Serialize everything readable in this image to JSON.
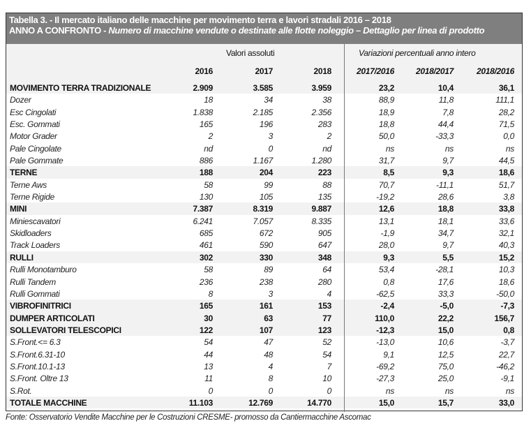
{
  "title": {
    "line1": "Tabella 3. - Il mercato italiano delle macchine per movimento terra e lavori stradali 2016 – 2018",
    "line2_prefix": "ANNO A CONFRONTO - ",
    "line2_italic": "Numero di macchine vendute o destinate alle flotte noleggio – Dettaglio per linea di prodotto"
  },
  "header": {
    "group_absolute": "Valori assoluti",
    "group_percent": "Variazioni percentuali anno intero",
    "columns": [
      "2016",
      "2017",
      "2018",
      "2017/2016",
      "2018/2017",
      "2018/2016"
    ]
  },
  "rows": [
    {
      "label": "MOVIMENTO TERRA TRADIZIONALE",
      "type": "bold",
      "values": [
        "2.909",
        "3.585",
        "3.959",
        "23,2",
        "10,4",
        "36,1"
      ]
    },
    {
      "label": "Dozer",
      "type": "sub",
      "values": [
        "18",
        "34",
        "38",
        "88,9",
        "11,8",
        "111,1"
      ]
    },
    {
      "label": "Esc Cingolati",
      "type": "sub",
      "values": [
        "1.838",
        "2.185",
        "2.356",
        "18,9",
        "7,8",
        "28,2"
      ]
    },
    {
      "label": "Esc. Gommati",
      "type": "sub",
      "values": [
        "165",
        "196",
        "283",
        "18,8",
        "44,4",
        "71,5"
      ]
    },
    {
      "label": "Motor Grader",
      "type": "sub",
      "values": [
        "2",
        "3",
        "2",
        "50,0",
        "-33,3",
        "0,0"
      ]
    },
    {
      "label": "Pale Cingolate",
      "type": "sub",
      "values": [
        "nd",
        "0",
        "nd",
        "ns",
        "ns",
        "ns"
      ]
    },
    {
      "label": "Pale Gommate",
      "type": "sub",
      "values": [
        "886",
        "1.167",
        "1.280",
        "31,7",
        "9,7",
        "44,5"
      ]
    },
    {
      "label": "TERNE",
      "type": "bold",
      "values": [
        "188",
        "204",
        "223",
        "8,5",
        "9,3",
        "18,6"
      ]
    },
    {
      "label": "Terne Aws",
      "type": "sub",
      "values": [
        "58",
        "99",
        "88",
        "70,7",
        "-11,1",
        "51,7"
      ]
    },
    {
      "label": "Terne Rigide",
      "type": "sub",
      "values": [
        "130",
        "105",
        "135",
        "-19,2",
        "28,6",
        "3,8"
      ]
    },
    {
      "label": "MINI",
      "type": "bold",
      "values": [
        "7.387",
        "8.319",
        "9.887",
        "12,6",
        "18,8",
        "33,8"
      ]
    },
    {
      "label": "Miniescavatori",
      "type": "sub",
      "values": [
        "6.241",
        "7.057",
        "8.335",
        "13,1",
        "18,1",
        "33,6"
      ]
    },
    {
      "label": "Skidloaders",
      "type": "sub",
      "values": [
        "685",
        "672",
        "905",
        "-1,9",
        "34,7",
        "32,1"
      ]
    },
    {
      "label": "Track Loaders",
      "type": "sub",
      "values": [
        "461",
        "590",
        "647",
        "28,0",
        "9,7",
        "40,3"
      ]
    },
    {
      "label": "RULLI",
      "type": "bold",
      "values": [
        "302",
        "330",
        "348",
        "9,3",
        "5,5",
        "15,2"
      ]
    },
    {
      "label": "Rulli Monotamburo",
      "type": "sub",
      "values": [
        "58",
        "89",
        "64",
        "53,4",
        "-28,1",
        "10,3"
      ]
    },
    {
      "label": "Rulli Tandem",
      "type": "sub",
      "values": [
        "236",
        "238",
        "280",
        "0,8",
        "17,6",
        "18,6"
      ]
    },
    {
      "label": "Rulli Gommati",
      "type": "sub",
      "values": [
        "8",
        "3",
        "4",
        "-62,5",
        "33,3",
        "-50,0"
      ]
    },
    {
      "label": "VIBROFINITRICI",
      "type": "bold",
      "values": [
        "165",
        "161",
        "153",
        "-2,4",
        "-5,0",
        "-7,3"
      ]
    },
    {
      "label": "DUMPER ARTICOLATI",
      "type": "bold",
      "values": [
        "30",
        "63",
        "77",
        "110,0",
        "22,2",
        "156,7"
      ]
    },
    {
      "label": "SOLLEVATORI TELESCOPICI",
      "type": "bold",
      "values": [
        "122",
        "107",
        "123",
        "-12,3",
        "15,0",
        "0,8"
      ]
    },
    {
      "label": "S.Front.<= 6.3",
      "type": "sub",
      "values": [
        "54",
        "47",
        "52",
        "-13,0",
        "10,6",
        "-3,7"
      ]
    },
    {
      "label": "S.Front.6.31-10",
      "type": "sub",
      "values": [
        "44",
        "48",
        "54",
        "9,1",
        "12,5",
        "22,7"
      ]
    },
    {
      "label": "S.Front.10.1-13",
      "type": "sub",
      "values": [
        "13",
        "4",
        "7",
        "-69,2",
        "75,0",
        "-46,2"
      ]
    },
    {
      "label": "S.Front. Oltre 13",
      "type": "sub",
      "values": [
        "11",
        "8",
        "10",
        "-27,3",
        "25,0",
        "-9,1"
      ]
    },
    {
      "label": "S.Rot.",
      "type": "sub",
      "values": [
        "0",
        "0",
        "0",
        "ns",
        "ns",
        "ns"
      ]
    },
    {
      "label": "TOTALE MACCHINE",
      "type": "bold",
      "values": [
        "11.103",
        "12.769",
        "14.770",
        "15,0",
        "15,7",
        "33,0"
      ]
    }
  ],
  "source": "Fonte: Osservatorio Vendite Macchine per le Costruzioni  CRESME- promosso da Cantiermacchine Ascomac",
  "colors": {
    "title_bg": "#7f7f7f",
    "header_bg": "#f2f2f2",
    "category_row_bg": "#f2f2f2"
  }
}
